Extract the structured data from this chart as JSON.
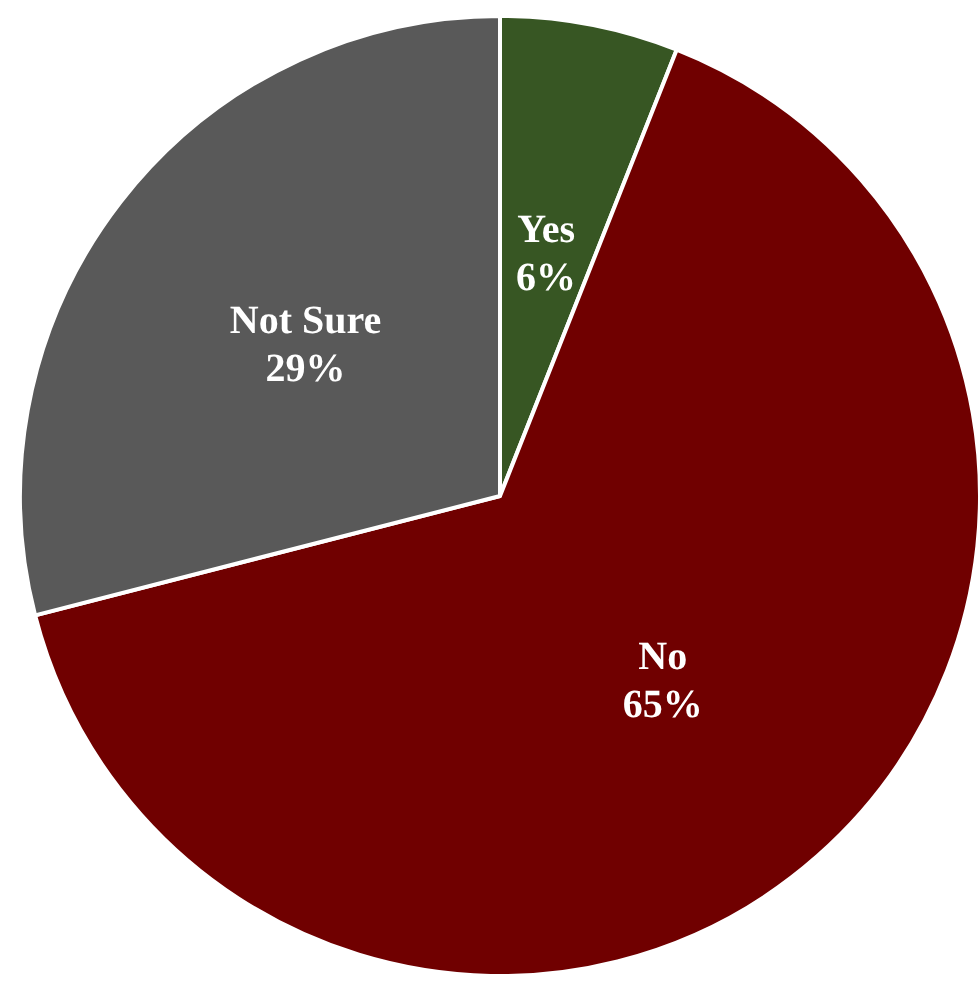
{
  "chart_data": {
    "type": "pie",
    "categories": [
      "Yes",
      "No",
      "Not Sure"
    ],
    "values": [
      6,
      65,
      29
    ],
    "colors": [
      "#375623",
      "#700000",
      "#595959"
    ],
    "value_labels": [
      "6%",
      "65%",
      "29%"
    ]
  }
}
